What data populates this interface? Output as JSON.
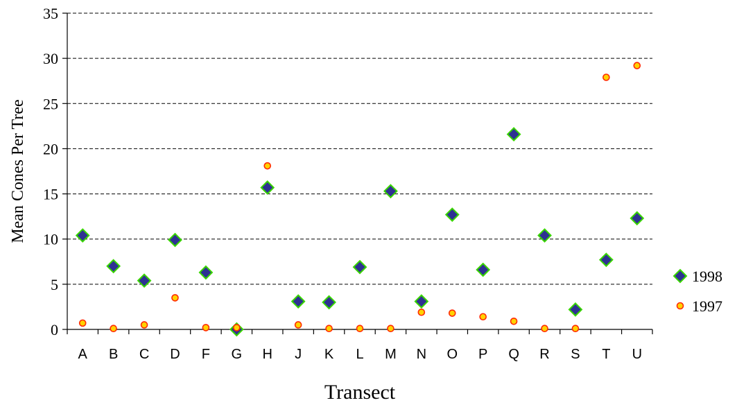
{
  "chart_data": {
    "type": "scatter",
    "title": "",
    "xlabel": "Transect",
    "ylabel": "Mean Cones Per Tree",
    "categories": [
      "A",
      "B",
      "C",
      "D",
      "F",
      "G",
      "H",
      "J",
      "K",
      "L",
      "M",
      "N",
      "O",
      "P",
      "Q",
      "R",
      "S",
      "T",
      "U"
    ],
    "ylim": [
      0,
      35
    ],
    "yticks": [
      0,
      5,
      10,
      15,
      20,
      25,
      30,
      35
    ],
    "grid": "horizontal dashed",
    "legend_position": "right",
    "series": [
      {
        "name": "1998",
        "marker": "diamond",
        "fill": "#2E3192",
        "stroke": "#39D600",
        "values": [
          10.4,
          7.0,
          5.4,
          9.9,
          6.3,
          0.0,
          15.7,
          3.1,
          3.0,
          6.9,
          15.3,
          3.1,
          12.7,
          6.6,
          21.6,
          10.4,
          2.2,
          7.7,
          12.3
        ]
      },
      {
        "name": "1997",
        "marker": "circle",
        "fill": "#FFD200",
        "stroke": "#FF2A00",
        "values": [
          0.7,
          0.1,
          0.5,
          3.5,
          0.2,
          0.2,
          18.1,
          0.5,
          0.1,
          0.1,
          0.1,
          1.9,
          1.8,
          1.4,
          0.9,
          0.1,
          0.1,
          27.9,
          29.2
        ]
      }
    ]
  }
}
